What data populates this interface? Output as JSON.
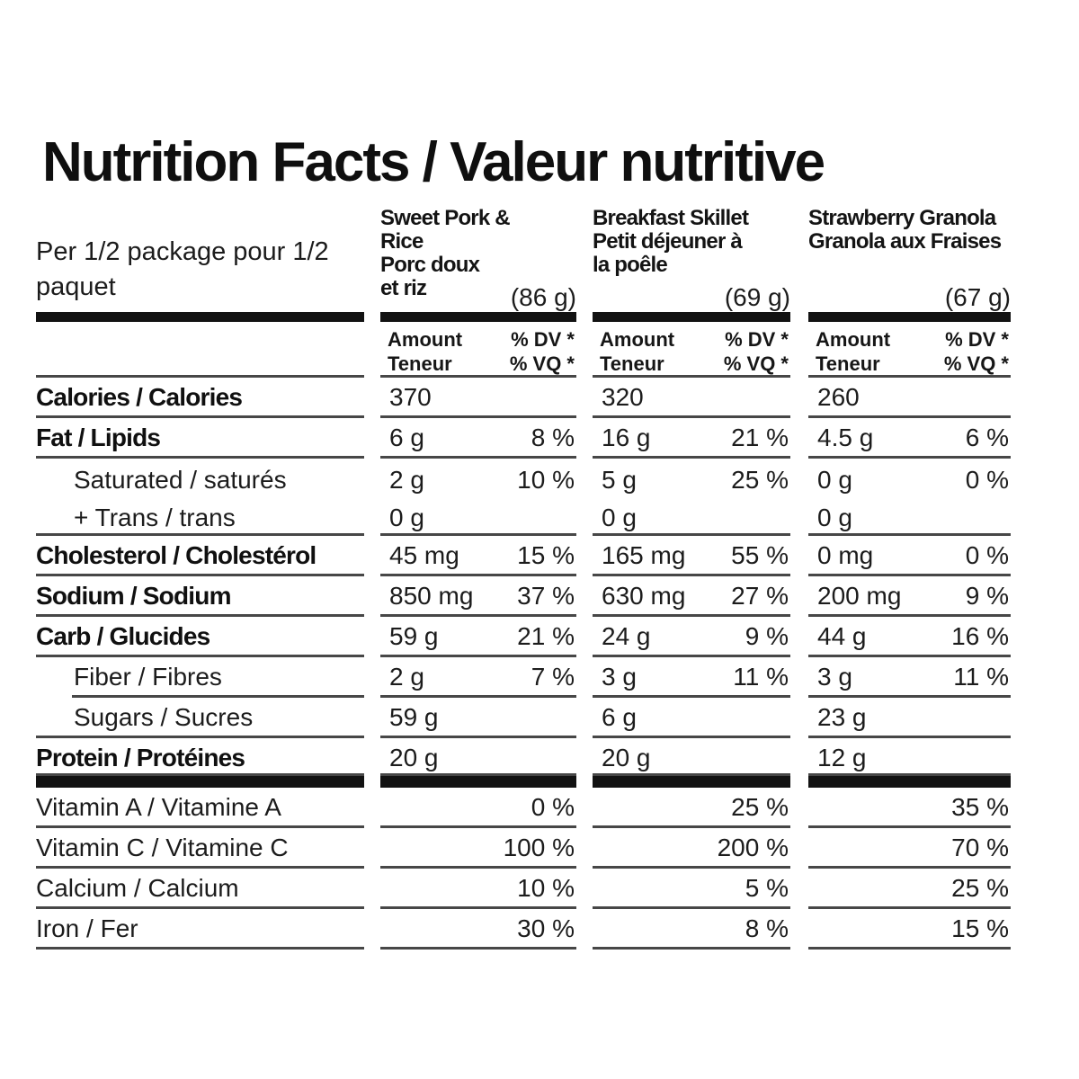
{
  "title": "Nutrition Facts / Valeur nutritive",
  "serving": "Per 1/2 package\npour 1/2 paquet",
  "products": [
    {
      "name": "Sweet Pork &\nRice\nPorc doux\net riz",
      "weight": "(86 g)"
    },
    {
      "name": "Breakfast Skillet\nPetit déjeuner à\nla poêle",
      "weight": "(69 g)"
    },
    {
      "name": "Strawberry Granola\nGranola aux Fraises",
      "weight": "(67 g)"
    }
  ],
  "column_header": {
    "amount": "Amount\nTeneur",
    "dv": "% DV *\n% VQ *"
  },
  "rows": [
    {
      "label": "Calories / Calories",
      "cols": [
        {
          "amount": "370",
          "dv": ""
        },
        {
          "amount": "320",
          "dv": ""
        },
        {
          "amount": "260",
          "dv": ""
        }
      ]
    },
    {
      "label": "Fat / Lipids",
      "cols": [
        {
          "amount": "6 g",
          "dv": "8 %"
        },
        {
          "amount": "16 g",
          "dv": "21 %"
        },
        {
          "amount": "4.5 g",
          "dv": "6 %"
        }
      ]
    },
    {
      "label": "Saturated / saturés\n+ Trans / trans",
      "cols": [
        {
          "amount": "2 g\n0 g",
          "dv": "10 %"
        },
        {
          "amount": "5 g\n0 g",
          "dv": "25 %"
        },
        {
          "amount": "0 g\n0 g",
          "dv": "0 %"
        }
      ]
    },
    {
      "label": "Cholesterol / Cholestérol",
      "cols": [
        {
          "amount": "45 mg",
          "dv": "15 %"
        },
        {
          "amount": "165 mg",
          "dv": "55 %"
        },
        {
          "amount": "0 mg",
          "dv": "0 %"
        }
      ]
    },
    {
      "label": "Sodium / Sodium",
      "cols": [
        {
          "amount": "850 mg",
          "dv": "37 %"
        },
        {
          "amount": "630 mg",
          "dv": "27 %"
        },
        {
          "amount": "200 mg",
          "dv": "9 %"
        }
      ]
    },
    {
      "label": "Carb / Glucides",
      "cols": [
        {
          "amount": "59 g",
          "dv": "21 %"
        },
        {
          "amount": "24 g",
          "dv": "9 %"
        },
        {
          "amount": "44 g",
          "dv": "16 %"
        }
      ]
    },
    {
      "label": "Fiber / Fibres",
      "cols": [
        {
          "amount": "2 g",
          "dv": "7 %"
        },
        {
          "amount": "3 g",
          "dv": "11 %"
        },
        {
          "amount": "3 g",
          "dv": "11 %"
        }
      ]
    },
    {
      "label": "Sugars / Sucres",
      "cols": [
        {
          "amount": "59 g",
          "dv": ""
        },
        {
          "amount": "6 g",
          "dv": ""
        },
        {
          "amount": "23 g",
          "dv": ""
        }
      ]
    },
    {
      "label": "Protein / Protéines",
      "cols": [
        {
          "amount": "20 g",
          "dv": ""
        },
        {
          "amount": "20 g",
          "dv": ""
        },
        {
          "amount": "12 g",
          "dv": ""
        }
      ]
    },
    {
      "label": "Vitamin A / Vitamine A",
      "cols": [
        {
          "amount": "",
          "dv": "0 %"
        },
        {
          "amount": "",
          "dv": "25 %"
        },
        {
          "amount": "",
          "dv": "35 %"
        }
      ]
    },
    {
      "label": "Vitamin C / Vitamine C",
      "cols": [
        {
          "amount": "",
          "dv": "100 %"
        },
        {
          "amount": "",
          "dv": "200 %"
        },
        {
          "amount": "",
          "dv": "70 %"
        }
      ]
    },
    {
      "label": "Calcium / Calcium",
      "cols": [
        {
          "amount": "",
          "dv": "10 %"
        },
        {
          "amount": "",
          "dv": "5 %"
        },
        {
          "amount": "",
          "dv": "25 %"
        }
      ]
    },
    {
      "label": "Iron / Fer",
      "cols": [
        {
          "amount": "",
          "dv": "30 %"
        },
        {
          "amount": "",
          "dv": "8 %"
        },
        {
          "amount": "",
          "dv": "15 %"
        }
      ]
    }
  ],
  "colors": {
    "text": "#1c1c1c",
    "rule_thin": "#474747",
    "rule_thick": "#121212"
  }
}
